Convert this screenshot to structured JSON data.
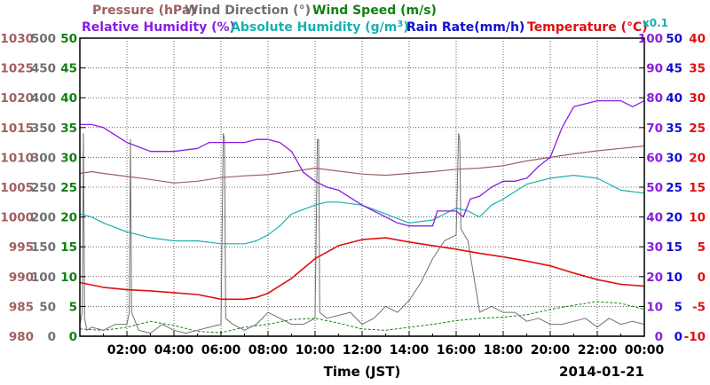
{
  "chart_data": {
    "type": "line",
    "date_label": "2014-01-21",
    "xlabel": "Time (JST)",
    "x_ticks": [
      "02:00",
      "04:00",
      "06:00",
      "08:00",
      "10:00",
      "12:00",
      "14:00",
      "16:00",
      "18:00",
      "20:00",
      "22:00",
      "00:00"
    ],
    "x_hours": [
      2,
      4,
      6,
      8,
      10,
      12,
      14,
      16,
      18,
      20,
      22,
      24
    ],
    "xlim": [
      0,
      24
    ],
    "legend": {
      "pressure": "Pressure (hPa)",
      "wind_direction": "Wind Direction (°)",
      "wind_speed": "Wind Speed (m/s)",
      "relative_humidity": "Relative Humidity (%)",
      "absolute_humidity_prefix": "Absolute Humidity (g/m",
      "absolute_humidity_sup": "3",
      "absolute_humidity_suffix": ")",
      "rain_rate": "Rain Rate(mm/h)",
      "temperature": "Temperature (°C)",
      "scale_note": "x0.1"
    },
    "axes": {
      "pressure": {
        "ticks": [
          "1030",
          "1025",
          "1020",
          "1015",
          "1010",
          "1005",
          "1000",
          "995",
          "990",
          "985",
          "980"
        ],
        "range": [
          980,
          1030
        ],
        "color": "#a06060"
      },
      "wind_direction": {
        "ticks": [
          "500",
          "450",
          "400",
          "350",
          "300",
          "250",
          "200",
          "150",
          "100",
          "50",
          "0"
        ],
        "range": [
          0,
          500
        ],
        "color": "#707070"
      },
      "wind_speed": {
        "ticks": [
          "50",
          "45",
          "40",
          "35",
          "30",
          "25",
          "20",
          "15",
          "10",
          "5",
          "0"
        ],
        "range": [
          0,
          50
        ],
        "color": "#108010"
      },
      "relative_humidity": {
        "ticks": [
          "100",
          "90",
          "80",
          "70",
          "60",
          "50",
          "40",
          "30",
          "20",
          "10",
          "0"
        ],
        "range": [
          0,
          100
        ],
        "color": "#8a1ee0"
      },
      "rain_rate": {
        "ticks": [
          "50",
          "45",
          "40",
          "35",
          "30",
          "25",
          "20",
          "15",
          "10",
          "5",
          "0"
        ],
        "range": [
          0,
          50
        ],
        "color": "#1010d0"
      },
      "temperature": {
        "ticks": [
          "40",
          "35",
          "30",
          "25",
          "20",
          "15",
          "10",
          "5",
          "0",
          "-5",
          "-10"
        ],
        "range": [
          -10,
          40
        ],
        "color": "#e01010"
      }
    },
    "colors": {
      "pressure": "#a06060",
      "wind_direction": "#707070",
      "wind_speed": "#108010",
      "relative_humidity": "#8a1ee0",
      "absolute_humidity": "#18b0b0",
      "rain_rate": "#1010d0",
      "temperature": "#e01010"
    },
    "series": [
      {
        "name": "Pressure (hPa)",
        "key": "pressure",
        "x": [
          0,
          0.5,
          1,
          2,
          3,
          4,
          5,
          6,
          7,
          8,
          9,
          10,
          11,
          12,
          13,
          14,
          15,
          16,
          17,
          18,
          19,
          20,
          21,
          22,
          23,
          24
        ],
        "values": [
          1007.3,
          1007.6,
          1007.3,
          1006.8,
          1006.3,
          1005.7,
          1006.0,
          1006.6,
          1006.9,
          1007.1,
          1007.6,
          1008.2,
          1007.7,
          1007.2,
          1007.0,
          1007.3,
          1007.6,
          1008.0,
          1008.2,
          1008.6,
          1009.4,
          1010.0,
          1010.6,
          1011.1,
          1011.5,
          1011.9
        ]
      },
      {
        "name": "Relative Humidity (%)",
        "key": "relative_humidity",
        "x": [
          0,
          0.5,
          1,
          2,
          3,
          4,
          5,
          5.5,
          6,
          7,
          7.5,
          8,
          8.5,
          9,
          9.5,
          10,
          10.5,
          11,
          12,
          12.5,
          13,
          13.5,
          14,
          14.5,
          15,
          15.2,
          16,
          16.3,
          16.6,
          17,
          17.5,
          18,
          18.5,
          19,
          19.5,
          20,
          20.5,
          21,
          22,
          23,
          23.5,
          24
        ],
        "values": [
          71,
          71,
          70,
          65,
          62,
          62,
          63,
          65,
          65,
          65,
          66,
          66,
          65,
          62,
          55,
          52,
          50,
          49,
          44,
          42,
          40,
          38,
          37,
          37,
          37,
          42,
          42,
          40,
          46,
          47,
          50,
          52,
          52,
          53,
          57,
          60,
          70,
          77,
          79,
          79,
          77,
          79
        ]
      },
      {
        "name": "Absolute Humidity (g/m3)",
        "key": "absolute_humidity",
        "x": [
          0,
          0.5,
          1,
          2,
          3,
          4,
          5,
          6,
          7,
          7.5,
          8,
          8.5,
          9,
          10,
          10.5,
          11,
          12,
          13,
          14,
          15,
          16,
          16.5,
          17,
          17.5,
          18,
          19,
          20,
          21,
          22,
          23,
          24
        ],
        "values": [
          41,
          40,
          38,
          35,
          33,
          32,
          32,
          31,
          31,
          32,
          34,
          37,
          41,
          44,
          45,
          45,
          44,
          41,
          38,
          39,
          43,
          42,
          40,
          44,
          46,
          51,
          53,
          54,
          53,
          49,
          48
        ]
      },
      {
        "name": "Temperature (°C)",
        "key": "temperature",
        "x": [
          0,
          1,
          2,
          3,
          4,
          5,
          6,
          7,
          7.5,
          8,
          9,
          10,
          11,
          12,
          13,
          14,
          15,
          16,
          17,
          18,
          19,
          20,
          21,
          22,
          23,
          24
        ],
        "values": [
          -1.0,
          -1.8,
          -2.2,
          -2.4,
          -2.7,
          -3.0,
          -3.8,
          -3.8,
          -3.5,
          -2.8,
          -0.3,
          3.0,
          5.2,
          6.2,
          6.5,
          5.8,
          5.2,
          4.6,
          3.9,
          3.3,
          2.6,
          1.8,
          0.6,
          -0.5,
          -1.3,
          -1.6
        ]
      },
      {
        "name": "Wind Direction (°)",
        "key": "wind_direction",
        "x": [
          0,
          0.1,
          0.15,
          0.2,
          0.3,
          0.5,
          1,
          1.5,
          2,
          2.1,
          2.15,
          2.2,
          2.5,
          3,
          3.5,
          4,
          4.5,
          5,
          5.5,
          6,
          6.1,
          6.15,
          6.2,
          6.5,
          7,
          7.5,
          8,
          8.5,
          9,
          9.5,
          10,
          10.1,
          10.15,
          10.2,
          10.5,
          11,
          11.5,
          12,
          12.5,
          13,
          13.5,
          14,
          14.5,
          15,
          15.5,
          16,
          16.1,
          16.15,
          16.2,
          16.5,
          17,
          17.5,
          18,
          18.5,
          19,
          19.5,
          20,
          20.5,
          21,
          21.5,
          22,
          22.5,
          23,
          23.5,
          24
        ],
        "values": [
          20,
          40,
          340,
          30,
          10,
          15,
          10,
          20,
          20,
          40,
          330,
          40,
          10,
          5,
          20,
          10,
          5,
          10,
          15,
          20,
          340,
          330,
          30,
          20,
          10,
          20,
          40,
          30,
          20,
          20,
          30,
          330,
          330,
          40,
          30,
          35,
          40,
          20,
          30,
          50,
          40,
          60,
          90,
          130,
          160,
          170,
          340,
          330,
          180,
          160,
          40,
          50,
          40,
          40,
          25,
          30,
          20,
          20,
          25,
          30,
          15,
          30,
          20,
          25,
          20
        ]
      },
      {
        "name": "Wind Speed (m/s)",
        "key": "wind_speed",
        "x": [
          0,
          1,
          2,
          3,
          4,
          5,
          6,
          7,
          8,
          9,
          10,
          11,
          12,
          13,
          14,
          15,
          16,
          17,
          18,
          19,
          20,
          21,
          22,
          23,
          24
        ],
        "values": [
          1.2,
          1.0,
          1.5,
          2.5,
          1.8,
          0.8,
          0.6,
          1.5,
          2.0,
          2.8,
          3.0,
          2.2,
          1.2,
          1.0,
          1.5,
          2.0,
          2.6,
          3.0,
          3.2,
          3.6,
          4.5,
          5.2,
          5.8,
          5.5,
          4.5
        ]
      },
      {
        "name": "Rain Rate(mm/h)",
        "key": "rain_rate",
        "x": [
          0,
          24
        ],
        "values": [
          0,
          0
        ]
      }
    ]
  }
}
